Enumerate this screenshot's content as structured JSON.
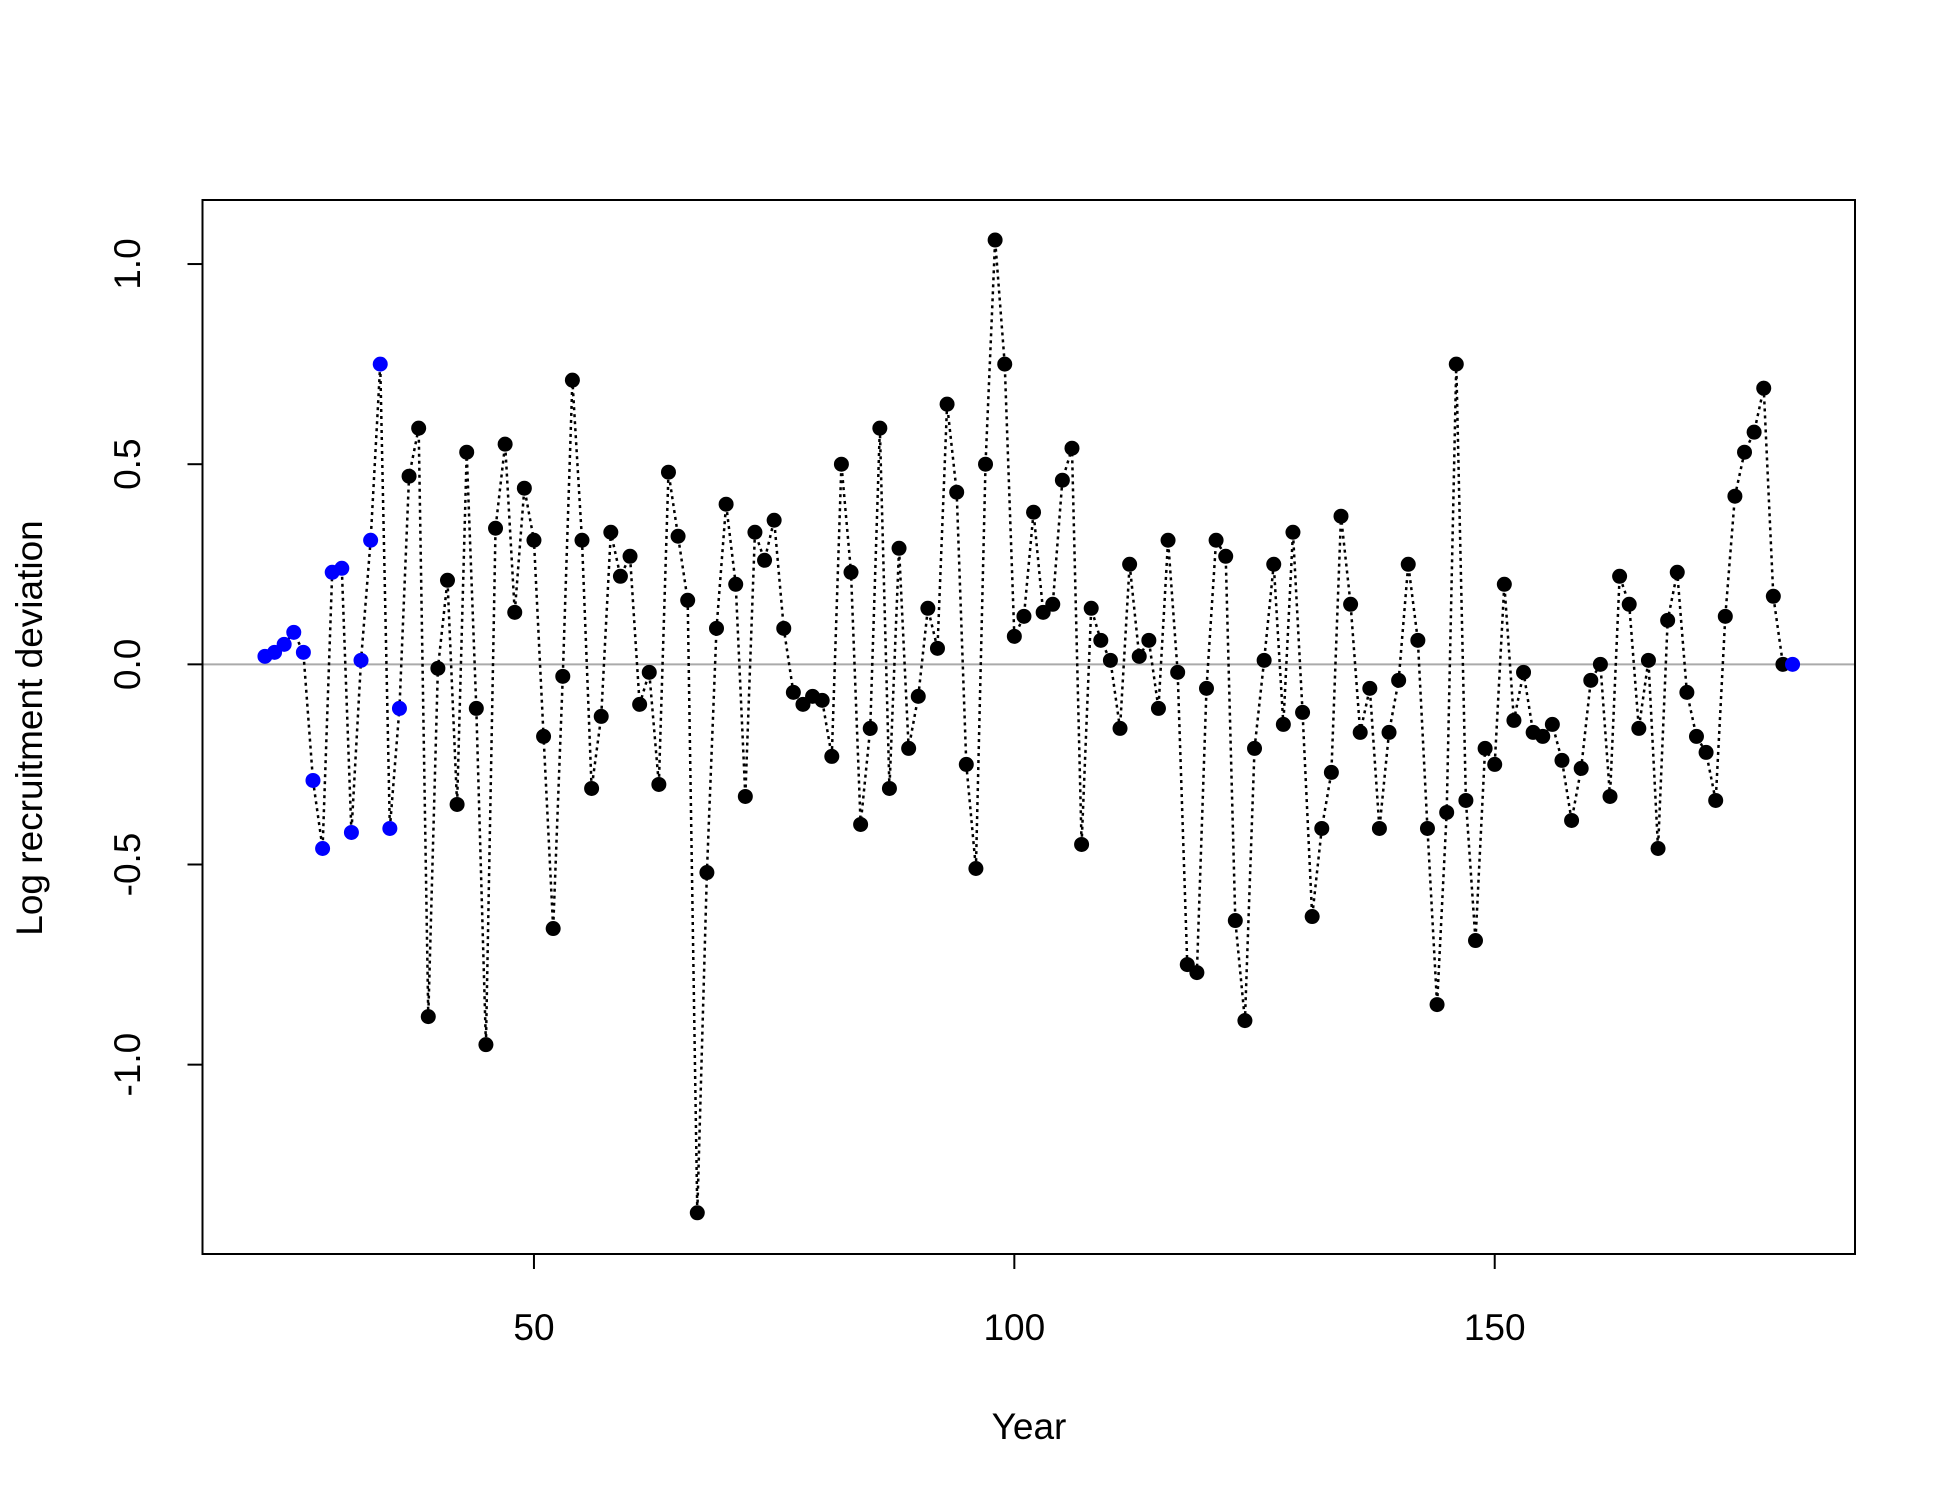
{
  "chart_data": {
    "type": "line",
    "xlabel": "Year",
    "ylabel": "Log recruitment deviation",
    "x": [
      22,
      23,
      24,
      25,
      26,
      27,
      28,
      29,
      30,
      31,
      32,
      33,
      34,
      35,
      36,
      37,
      38,
      39,
      40,
      41,
      42,
      43,
      44,
      45,
      46,
      47,
      48,
      49,
      50,
      51,
      52,
      53,
      54,
      55,
      56,
      57,
      58,
      59,
      60,
      61,
      62,
      63,
      64,
      65,
      66,
      67,
      68,
      69,
      70,
      71,
      72,
      73,
      74,
      75,
      76,
      77,
      78,
      79,
      80,
      81,
      82,
      83,
      84,
      85,
      86,
      87,
      88,
      89,
      90,
      91,
      92,
      93,
      94,
      95,
      96,
      97,
      98,
      99,
      100,
      101,
      102,
      103,
      104,
      105,
      106,
      107,
      108,
      109,
      110,
      111,
      112,
      113,
      114,
      115,
      116,
      117,
      118,
      119,
      120,
      121,
      122,
      123,
      124,
      125,
      126,
      127,
      128,
      129,
      130,
      131,
      132,
      133,
      134,
      135,
      136,
      137,
      138,
      139,
      140,
      141,
      142,
      143,
      144,
      145,
      146,
      147,
      148,
      149,
      150,
      151,
      152,
      153,
      154,
      155,
      156,
      157,
      158,
      159,
      160,
      161,
      162,
      163,
      164,
      165,
      166,
      167,
      168,
      169,
      170,
      171,
      172,
      173,
      174,
      175,
      176,
      177,
      178,
      179,
      180,
      181
    ],
    "series": [
      {
        "line_color": "#000000",
        "values": [
          0.02,
          0.03,
          0.05,
          0.08,
          0.03,
          -0.29,
          -0.46,
          0.23,
          0.24,
          -0.42,
          0.01,
          0.31,
          0.75,
          -0.41,
          -0.11,
          0.47,
          0.59,
          -0.88,
          -0.01,
          0.21,
          -0.35,
          0.53,
          -0.11,
          -0.95,
          0.34,
          0.55,
          0.13,
          0.44,
          0.31,
          -0.18,
          -0.66,
          -0.03,
          0.71,
          0.31,
          -0.31,
          -0.13,
          0.33,
          0.22,
          0.27,
          -0.1,
          -0.02,
          -0.3,
          0.48,
          0.32,
          0.16,
          -1.37,
          -0.52,
          0.09,
          0.4,
          0.2,
          -0.33,
          0.33,
          0.26,
          0.36,
          0.09,
          -0.07,
          -0.1,
          -0.08,
          -0.09,
          -0.23,
          0.5,
          0.23,
          -0.4,
          -0.16,
          0.59,
          -0.31,
          0.29,
          -0.21,
          -0.08,
          0.14,
          0.04,
          0.65,
          0.43,
          -0.25,
          -0.51,
          0.5,
          1.06,
          0.75,
          0.07,
          0.12,
          0.38,
          0.13,
          0.15,
          0.46,
          0.54,
          -0.45,
          0.14,
          0.06,
          0.01,
          -0.16,
          0.25,
          0.02,
          0.06,
          -0.11,
          0.31,
          -0.02,
          -0.75,
          -0.77,
          -0.06,
          0.31,
          0.27,
          -0.64,
          -0.89,
          -0.21,
          0.01,
          0.25,
          -0.15,
          0.33,
          -0.12,
          -0.63,
          -0.41,
          -0.27,
          0.37,
          0.15,
          -0.17,
          -0.06,
          -0.41,
          -0.17,
          -0.04,
          0.25,
          0.06,
          -0.41,
          -0.85,
          -0.37,
          0.75,
          -0.34,
          -0.69,
          -0.21,
          -0.25,
          0.2,
          -0.14,
          -0.02,
          -0.17,
          -0.18,
          -0.15,
          -0.24,
          -0.39,
          -0.26,
          -0.04,
          0.0,
          -0.33,
          0.22,
          0.15,
          -0.16,
          0.01,
          -0.46,
          0.11,
          0.23,
          -0.07,
          -0.18,
          -0.22,
          -0.34,
          0.12,
          0.42,
          0.53,
          0.58,
          0.69,
          0.17,
          0.0,
          0.0
        ],
        "colors": [
          "#0000ff",
          "#0000ff",
          "#0000ff",
          "#0000ff",
          "#0000ff",
          "#0000ff",
          "#0000ff",
          "#0000ff",
          "#0000ff",
          "#0000ff",
          "#0000ff",
          "#0000ff",
          "#0000ff",
          "#0000ff",
          "#0000ff",
          "#000000",
          "#000000",
          "#000000",
          "#000000",
          "#000000",
          "#000000",
          "#000000",
          "#000000",
          "#000000",
          "#000000",
          "#000000",
          "#000000",
          "#000000",
          "#000000",
          "#000000",
          "#000000",
          "#000000",
          "#000000",
          "#000000",
          "#000000",
          "#000000",
          "#000000",
          "#000000",
          "#000000",
          "#000000",
          "#000000",
          "#000000",
          "#000000",
          "#000000",
          "#000000",
          "#000000",
          "#000000",
          "#000000",
          "#000000",
          "#000000",
          "#000000",
          "#000000",
          "#000000",
          "#000000",
          "#000000",
          "#000000",
          "#000000",
          "#000000",
          "#000000",
          "#000000",
          "#000000",
          "#000000",
          "#000000",
          "#000000",
          "#000000",
          "#000000",
          "#000000",
          "#000000",
          "#000000",
          "#000000",
          "#000000",
          "#000000",
          "#000000",
          "#000000",
          "#000000",
          "#000000",
          "#000000",
          "#000000",
          "#000000",
          "#000000",
          "#000000",
          "#000000",
          "#000000",
          "#000000",
          "#000000",
          "#000000",
          "#000000",
          "#000000",
          "#000000",
          "#000000",
          "#000000",
          "#000000",
          "#000000",
          "#000000",
          "#000000",
          "#000000",
          "#000000",
          "#000000",
          "#000000",
          "#000000",
          "#000000",
          "#000000",
          "#000000",
          "#000000",
          "#000000",
          "#000000",
          "#000000",
          "#000000",
          "#000000",
          "#000000",
          "#000000",
          "#000000",
          "#000000",
          "#000000",
          "#000000",
          "#000000",
          "#000000",
          "#000000",
          "#000000",
          "#000000",
          "#000000",
          "#000000",
          "#000000",
          "#000000",
          "#000000",
          "#000000",
          "#000000",
          "#000000",
          "#000000",
          "#000000",
          "#000000",
          "#000000",
          "#000000",
          "#000000",
          "#000000",
          "#000000",
          "#000000",
          "#000000",
          "#000000",
          "#000000",
          "#000000",
          "#000000",
          "#000000",
          "#000000",
          "#000000",
          "#000000",
          "#000000",
          "#000000",
          "#000000",
          "#000000",
          "#000000",
          "#000000",
          "#000000",
          "#000000",
          "#000000",
          "#000000",
          "#000000",
          "#000000",
          "#000000",
          "#0000ff"
        ]
      }
    ],
    "reference_line": {
      "value": 0,
      "color": "#aaaaaa"
    },
    "xlim": [
      15.5,
      187.5
    ],
    "ylim": [
      -1.473,
      1.16
    ],
    "xticks": [
      50,
      100,
      150
    ],
    "yticks": [
      {
        "value": -1,
        "label": "-1.0"
      },
      {
        "value": -0.5,
        "label": "-0.5"
      },
      {
        "value": 0,
        "label": "0.0"
      },
      {
        "value": 0.5,
        "label": "0.5"
      },
      {
        "value": 1,
        "label": "1.0"
      }
    ],
    "grid": false
  }
}
